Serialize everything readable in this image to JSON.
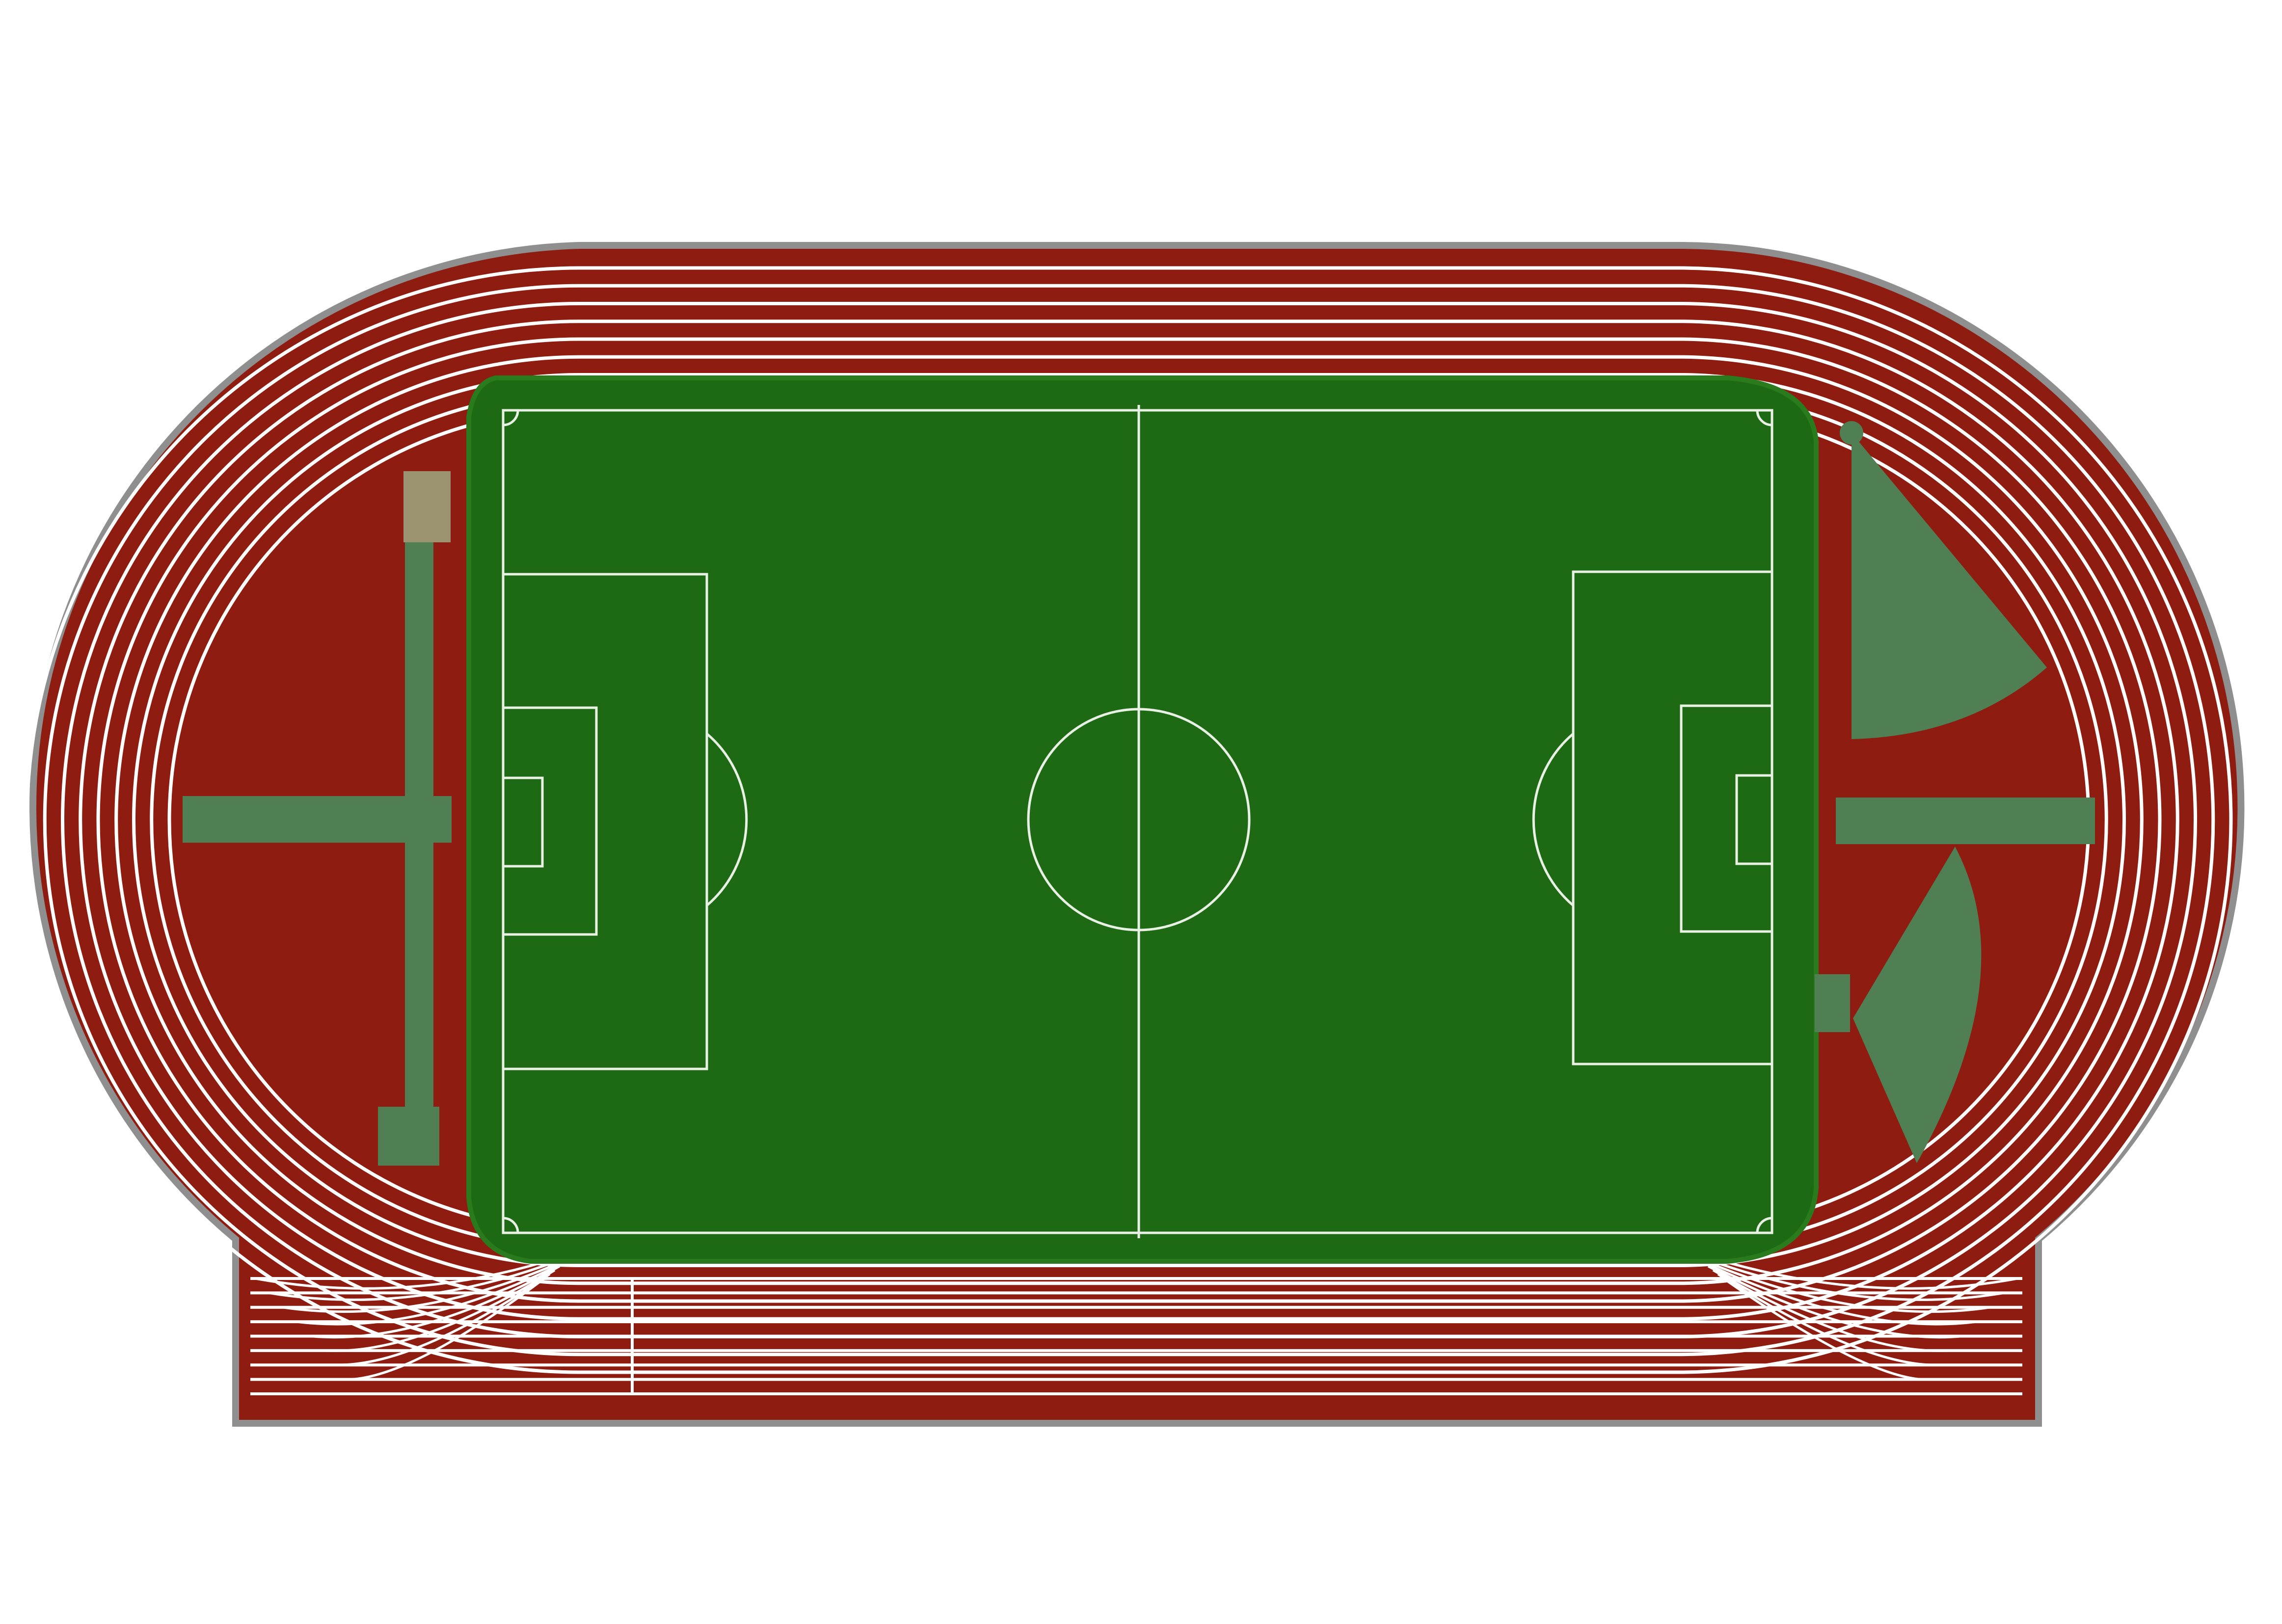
{
  "diagram": {
    "kind": "sports-ground-plan",
    "colors": {
      "background": "#ffffff",
      "outer_rim": "#8f8f8f",
      "track": "#8e1c10",
      "lane_line": "#ffffff",
      "pitch": "#1e6a14",
      "pitch_border": "#2a7a1e",
      "pitch_line": "#e8f1e4",
      "event_area": "#4f7f52",
      "event_area_dark": "#3f7142",
      "pad": "#9c9470"
    },
    "track": {
      "lanes": 8
    },
    "field_events": [
      {
        "name": "long-jump-runway"
      },
      {
        "name": "triple-jump-runway"
      },
      {
        "name": "high-jump-fan"
      },
      {
        "name": "javelin-runway"
      },
      {
        "name": "shot-put-sector"
      }
    ]
  }
}
